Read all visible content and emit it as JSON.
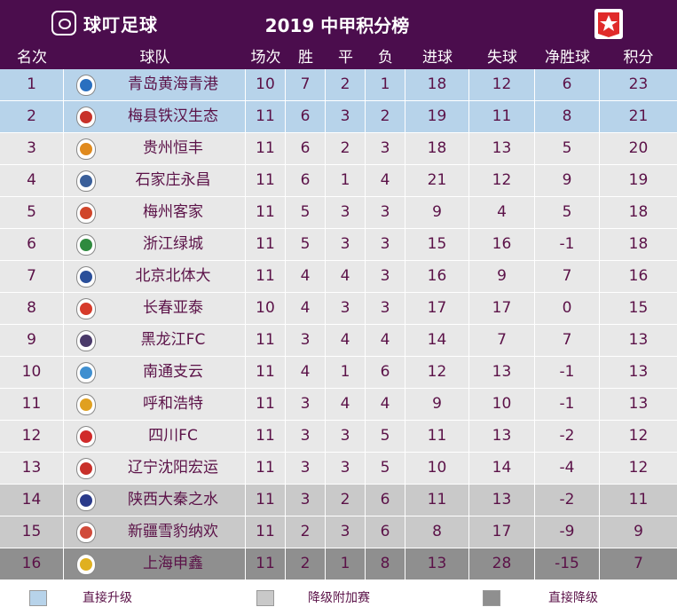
{
  "header": {
    "brand": "球叮足球",
    "title": "2019 中甲积分榜"
  },
  "columns": [
    "名次",
    "球队",
    "场次",
    "胜",
    "平",
    "负",
    "进球",
    "失球",
    "净胜球",
    "积分"
  ],
  "rows": [
    {
      "rank": "1",
      "team": "青岛黄海青港",
      "played": "10",
      "win": "7",
      "draw": "2",
      "loss": "1",
      "gf": "18",
      "ga": "12",
      "gd": "6",
      "pts": "23",
      "zone": "promotion",
      "badge": "#2a6fbf"
    },
    {
      "rank": "2",
      "team": "梅县铁汉生态",
      "played": "11",
      "win": "6",
      "draw": "3",
      "loss": "2",
      "gf": "19",
      "ga": "11",
      "gd": "8",
      "pts": "21",
      "zone": "promotion",
      "badge": "#c8322a"
    },
    {
      "rank": "3",
      "team": "贵州恒丰",
      "played": "11",
      "win": "6",
      "draw": "2",
      "loss": "3",
      "gf": "18",
      "ga": "13",
      "gd": "5",
      "pts": "20",
      "zone": "normal",
      "badge": "#e08a1e"
    },
    {
      "rank": "4",
      "team": "石家庄永昌",
      "played": "11",
      "win": "6",
      "draw": "1",
      "loss": "4",
      "gf": "21",
      "ga": "12",
      "gd": "9",
      "pts": "19",
      "zone": "normal",
      "badge": "#3a5f9a"
    },
    {
      "rank": "5",
      "team": "梅州客家",
      "played": "11",
      "win": "5",
      "draw": "3",
      "loss": "3",
      "gf": "9",
      "ga": "4",
      "gd": "5",
      "pts": "18",
      "zone": "normal",
      "badge": "#d0452a"
    },
    {
      "rank": "6",
      "team": "浙江绿城",
      "played": "11",
      "win": "5",
      "draw": "3",
      "loss": "3",
      "gf": "15",
      "ga": "16",
      "gd": "-1",
      "pts": "18",
      "zone": "normal",
      "badge": "#2f8a3e"
    },
    {
      "rank": "7",
      "team": "北京北体大",
      "played": "11",
      "win": "4",
      "draw": "4",
      "loss": "3",
      "gf": "16",
      "ga": "9",
      "gd": "7",
      "pts": "16",
      "zone": "normal",
      "badge": "#2a4f9a"
    },
    {
      "rank": "8",
      "team": "长春亚泰",
      "played": "10",
      "win": "4",
      "draw": "3",
      "loss": "3",
      "gf": "17",
      "ga": "17",
      "gd": "0",
      "pts": "15",
      "zone": "normal",
      "badge": "#d63a2a"
    },
    {
      "rank": "9",
      "team": "黑龙江FC",
      "played": "11",
      "win": "3",
      "draw": "4",
      "loss": "4",
      "gf": "14",
      "ga": "7",
      "gd": "7",
      "pts": "13",
      "zone": "normal",
      "badge": "#4a3a6a"
    },
    {
      "rank": "10",
      "team": "南通支云",
      "played": "11",
      "win": "4",
      "draw": "1",
      "loss": "6",
      "gf": "12",
      "ga": "13",
      "gd": "-1",
      "pts": "13",
      "zone": "normal",
      "badge": "#3f8fd0"
    },
    {
      "rank": "11",
      "team": "呼和浩特",
      "played": "11",
      "win": "3",
      "draw": "4",
      "loss": "4",
      "gf": "9",
      "ga": "10",
      "gd": "-1",
      "pts": "13",
      "zone": "normal",
      "badge": "#e0a020"
    },
    {
      "rank": "12",
      "team": "四川FC",
      "played": "11",
      "win": "3",
      "draw": "3",
      "loss": "5",
      "gf": "11",
      "ga": "13",
      "gd": "-2",
      "pts": "12",
      "zone": "normal",
      "badge": "#d02a2a"
    },
    {
      "rank": "13",
      "team": "辽宁沈阳宏运",
      "played": "11",
      "win": "3",
      "draw": "3",
      "loss": "5",
      "gf": "10",
      "ga": "14",
      "gd": "-4",
      "pts": "12",
      "zone": "normal",
      "badge": "#c8302a"
    },
    {
      "rank": "14",
      "team": "陕西大秦之水",
      "played": "11",
      "win": "3",
      "draw": "2",
      "loss": "6",
      "gf": "11",
      "ga": "13",
      "gd": "-2",
      "pts": "11",
      "zone": "playoff",
      "badge": "#2a3a8a"
    },
    {
      "rank": "15",
      "team": "新疆雪豹纳欢",
      "played": "11",
      "win": "2",
      "draw": "3",
      "loss": "6",
      "gf": "8",
      "ga": "17",
      "gd": "-9",
      "pts": "9",
      "zone": "playoff",
      "badge": "#d04a3a"
    },
    {
      "rank": "16",
      "team": "上海申鑫",
      "played": "11",
      "win": "2",
      "draw": "1",
      "loss": "8",
      "gf": "13",
      "ga": "28",
      "gd": "-15",
      "pts": "7",
      "zone": "relegation",
      "badge": "#e0b020"
    }
  ],
  "legend": [
    {
      "label": "直接升级",
      "color": "#b7d3ea"
    },
    {
      "label": "降级附加赛",
      "color": "#c9c9c9"
    },
    {
      "label": "直接降级",
      "color": "#8f8f8f"
    }
  ],
  "colors": {
    "header_bg": "#4b0d4d",
    "promotion": "#b7d3ea",
    "normal": "#e8e8e8",
    "playoff": "#c9c9c9",
    "relegation": "#8f8f8f",
    "text": "#5b1248"
  }
}
